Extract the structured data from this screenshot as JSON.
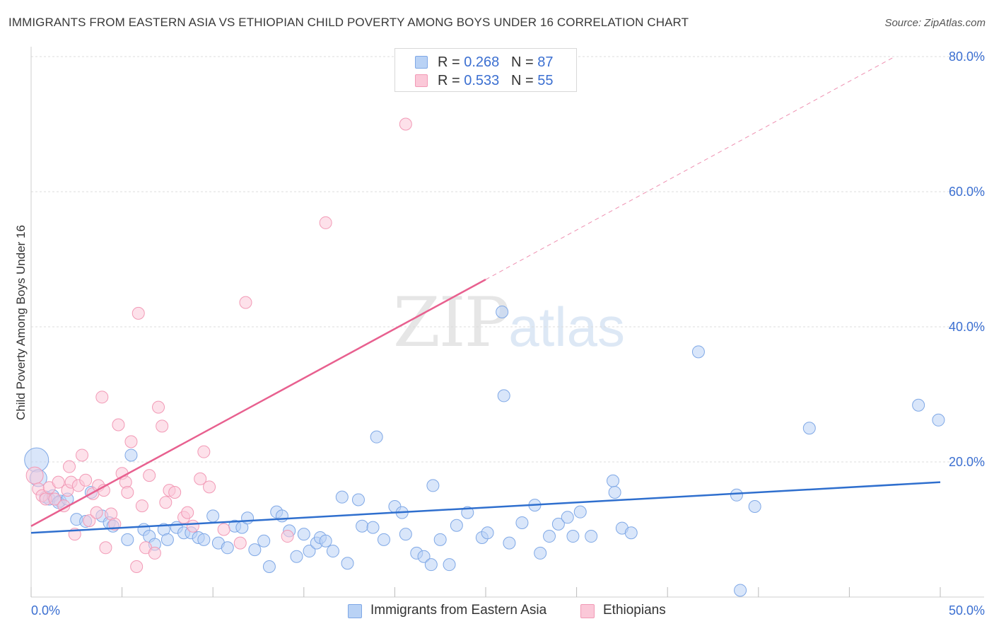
{
  "header": {
    "title": "IMMIGRANTS FROM EASTERN ASIA VS ETHIOPIAN CHILD POVERTY AMONG BOYS UNDER 16 CORRELATION CHART",
    "source": "Source: ZipAtlas.com"
  },
  "watermark": {
    "zip": "ZIP",
    "atlas": "atlas"
  },
  "legend": {
    "r_label": "R = ",
    "n_label": "N = ",
    "entries": [
      {
        "name": "Immigrants from Eastern Asia",
        "r": "0.268",
        "n": "87",
        "fill": "#b9d2f5",
        "stroke": "#7fa8e6"
      },
      {
        "name": "Ethiopians",
        "r": "0.533",
        "n": "55",
        "fill": "#fbc8d8",
        "stroke": "#f29ab6"
      }
    ]
  },
  "colors": {
    "blue_line": "#2f6fce",
    "pink_line": "#e8608f",
    "blue_text": "#3b6fd1",
    "grid": "#dcdcdc"
  },
  "chart_data": {
    "type": "scatter",
    "title": "IMMIGRANTS FROM EASTERN ASIA VS ETHIOPIAN CHILD POVERTY AMONG BOYS UNDER 16 CORRELATION CHART",
    "xlabel": "",
    "ylabel": "Child Poverty Among Boys Under 16",
    "xlim": [
      0,
      50
    ],
    "ylim": [
      0,
      80
    ],
    "x_tick_labels": [
      "0.0%",
      "50.0%"
    ],
    "y_tick_values": [
      20,
      40,
      60,
      80
    ],
    "y_tick_labels": [
      "20.0%",
      "40.0%",
      "60.0%",
      "80.0%"
    ],
    "grid": true,
    "series": [
      {
        "name": "Immigrants from Eastern Asia",
        "trend": {
          "x": [
            0,
            50
          ],
          "y": [
            9.5,
            17.0
          ],
          "dashed_to": null
        },
        "points": [
          [
            0.3,
            20.3,
            3
          ],
          [
            0.4,
            17.6,
            2
          ],
          [
            0.8,
            14.8,
            1
          ],
          [
            1.0,
            14.5,
            1
          ],
          [
            1.2,
            15.0,
            1
          ],
          [
            1.6,
            14.2,
            1
          ],
          [
            1.5,
            14.0,
            1
          ],
          [
            2.0,
            14.5,
            1
          ],
          [
            2.5,
            11.5,
            1
          ],
          [
            3.0,
            11.2,
            1
          ],
          [
            3.3,
            15.5,
            1
          ],
          [
            3.9,
            12.0,
            1
          ],
          [
            4.3,
            11.0,
            1
          ],
          [
            4.5,
            10.5,
            1
          ],
          [
            5.3,
            8.5,
            1
          ],
          [
            5.5,
            21.0,
            1
          ],
          [
            6.2,
            10.0,
            1
          ],
          [
            6.5,
            9.0,
            1
          ],
          [
            6.8,
            7.8,
            1
          ],
          [
            7.3,
            10.0,
            1
          ],
          [
            7.5,
            8.5,
            1
          ],
          [
            8.0,
            10.3,
            1
          ],
          [
            8.4,
            9.5,
            1
          ],
          [
            8.8,
            9.5,
            1
          ],
          [
            9.2,
            8.8,
            1
          ],
          [
            9.5,
            8.5,
            1
          ],
          [
            10.0,
            12.0,
            1
          ],
          [
            10.3,
            8.0,
            1
          ],
          [
            10.8,
            7.3,
            1
          ],
          [
            11.2,
            10.5,
            1
          ],
          [
            11.6,
            10.3,
            1
          ],
          [
            11.9,
            11.7,
            1
          ],
          [
            12.3,
            7.0,
            1
          ],
          [
            12.8,
            8.3,
            1
          ],
          [
            13.1,
            4.5,
            1
          ],
          [
            13.5,
            12.6,
            1
          ],
          [
            13.8,
            12.0,
            1
          ],
          [
            14.2,
            9.8,
            1
          ],
          [
            14.6,
            6.0,
            1
          ],
          [
            15.0,
            9.3,
            1
          ],
          [
            15.3,
            6.8,
            1
          ],
          [
            15.7,
            8.0,
            1
          ],
          [
            15.9,
            8.8,
            1
          ],
          [
            16.2,
            8.3,
            1
          ],
          [
            16.6,
            6.8,
            1
          ],
          [
            17.1,
            14.8,
            1
          ],
          [
            17.4,
            5.0,
            1
          ],
          [
            18.0,
            14.4,
            1
          ],
          [
            18.2,
            10.5,
            1
          ],
          [
            18.8,
            10.3,
            1
          ],
          [
            19.0,
            23.7,
            1
          ],
          [
            19.4,
            8.5,
            1
          ],
          [
            20.0,
            13.4,
            1
          ],
          [
            20.4,
            12.5,
            1
          ],
          [
            20.6,
            9.3,
            1
          ],
          [
            21.2,
            6.5,
            1
          ],
          [
            21.6,
            6.0,
            1
          ],
          [
            22.0,
            4.8,
            1
          ],
          [
            22.1,
            16.5,
            1
          ],
          [
            22.5,
            8.5,
            1
          ],
          [
            23.0,
            4.8,
            1
          ],
          [
            23.4,
            10.6,
            1
          ],
          [
            24.0,
            12.5,
            1
          ],
          [
            24.8,
            8.8,
            1
          ],
          [
            25.1,
            9.5,
            1
          ],
          [
            25.9,
            42.2,
            1
          ],
          [
            26.0,
            29.8,
            1
          ],
          [
            26.3,
            8.0,
            1
          ],
          [
            27.0,
            11.0,
            1
          ],
          [
            27.7,
            13.6,
            1
          ],
          [
            28.0,
            6.5,
            1
          ],
          [
            28.5,
            9.0,
            1
          ],
          [
            29.0,
            10.8,
            1
          ],
          [
            29.5,
            11.8,
            1
          ],
          [
            29.8,
            9.0,
            1
          ],
          [
            30.2,
            12.6,
            1
          ],
          [
            30.8,
            9.0,
            1
          ],
          [
            32.0,
            17.2,
            1
          ],
          [
            32.1,
            15.5,
            1
          ],
          [
            32.5,
            10.2,
            1
          ],
          [
            33.0,
            9.5,
            1
          ],
          [
            36.7,
            36.3,
            1
          ],
          [
            38.8,
            15.1,
            1
          ],
          [
            39.0,
            1.0,
            1
          ],
          [
            39.8,
            13.4,
            1
          ],
          [
            42.8,
            25.0,
            1
          ],
          [
            48.8,
            28.4,
            1
          ],
          [
            49.9,
            26.2,
            1
          ]
        ]
      },
      {
        "name": "Ethiopians",
        "trend": {
          "x": [
            0,
            25
          ],
          "y": [
            10.5,
            47.0
          ],
          "dashed_to": [
            47.5,
            80.0
          ]
        },
        "points": [
          [
            0.2,
            18.0,
            2
          ],
          [
            0.4,
            16.0,
            1
          ],
          [
            0.6,
            15.0,
            1
          ],
          [
            0.8,
            14.5,
            1
          ],
          [
            1.0,
            16.2,
            1
          ],
          [
            1.3,
            14.5,
            1
          ],
          [
            1.5,
            17.0,
            1
          ],
          [
            1.8,
            13.5,
            1
          ],
          [
            2.0,
            15.8,
            1
          ],
          [
            2.1,
            19.3,
            1
          ],
          [
            2.2,
            17.0,
            1
          ],
          [
            2.4,
            9.3,
            1
          ],
          [
            2.6,
            16.5,
            1
          ],
          [
            2.8,
            21.0,
            1
          ],
          [
            3.0,
            17.3,
            1
          ],
          [
            3.2,
            11.3,
            1
          ],
          [
            3.4,
            15.3,
            1
          ],
          [
            3.6,
            12.5,
            1
          ],
          [
            3.7,
            16.5,
            1
          ],
          [
            3.9,
            29.6,
            1
          ],
          [
            4.0,
            15.8,
            1
          ],
          [
            4.1,
            7.3,
            1
          ],
          [
            4.4,
            12.3,
            1
          ],
          [
            4.6,
            10.8,
            1
          ],
          [
            4.8,
            25.5,
            1
          ],
          [
            5.0,
            18.3,
            1
          ],
          [
            5.2,
            17.0,
            1
          ],
          [
            5.3,
            15.5,
            1
          ],
          [
            5.5,
            23.0,
            1
          ],
          [
            5.8,
            4.5,
            1
          ],
          [
            5.9,
            42.0,
            1
          ],
          [
            6.1,
            13.5,
            1
          ],
          [
            6.3,
            7.3,
            1
          ],
          [
            6.5,
            18.0,
            1
          ],
          [
            6.8,
            6.5,
            1
          ],
          [
            7.0,
            28.1,
            1
          ],
          [
            7.2,
            25.3,
            1
          ],
          [
            7.4,
            14.0,
            1
          ],
          [
            7.6,
            15.8,
            1
          ],
          [
            7.9,
            15.5,
            1
          ],
          [
            8.4,
            11.8,
            1
          ],
          [
            8.6,
            12.5,
            1
          ],
          [
            8.9,
            10.5,
            1
          ],
          [
            9.3,
            17.5,
            1
          ],
          [
            9.5,
            21.5,
            1
          ],
          [
            9.8,
            16.3,
            1
          ],
          [
            10.6,
            10.0,
            1
          ],
          [
            11.5,
            8.0,
            1
          ],
          [
            11.8,
            43.6,
            1
          ],
          [
            14.1,
            9.0,
            1
          ],
          [
            16.2,
            55.4,
            1
          ],
          [
            20.6,
            70.0,
            1
          ]
        ]
      }
    ]
  }
}
